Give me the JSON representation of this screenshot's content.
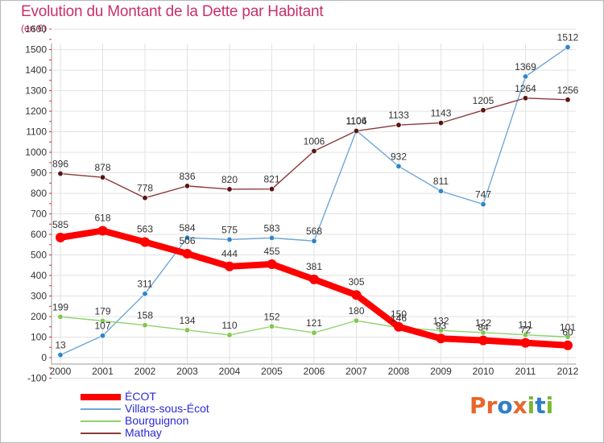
{
  "title": "Evolution du Montant de la Dette par Habitant",
  "subtitle": "(en €)",
  "logo": {
    "text": "Proxiti",
    "letters": [
      "P",
      "r",
      "o",
      "x",
      "i",
      "t",
      "i"
    ],
    "colors": [
      "#e8662a",
      "#e8662a",
      "#2d7fc9",
      "#e8662a",
      "#7bb832",
      "#2d7fc9",
      "#7bb832"
    ]
  },
  "chart_data": {
    "type": "line",
    "title": "Evolution du Montant de la Dette par Habitant",
    "subtitle": "(en €)",
    "x": [
      "2000",
      "2001",
      "2002",
      "2003",
      "2004",
      "2005",
      "2006",
      "2007",
      "2008",
      "2009",
      "2010",
      "2011",
      "2012"
    ],
    "ylim": [
      -100,
      1600
    ],
    "yticks": [
      "-100",
      "0",
      "100",
      "200",
      "300",
      "400",
      "500",
      "600",
      "700",
      "800",
      "900",
      "1000",
      "1100",
      "1200",
      "1300",
      "1400",
      "1500",
      "1600"
    ],
    "grid": true,
    "legend_position": "bottom-left",
    "series": [
      {
        "name": "ÉCOT",
        "color": "#ff0000",
        "values": [
          585,
          618,
          563,
          506,
          444,
          455,
          381,
          305,
          150,
          93,
          84,
          72,
          60
        ],
        "labels": [
          "585",
          "618",
          "563",
          "506",
          "444",
          "455",
          "381",
          "305",
          "150",
          "93",
          "84",
          "72",
          "60"
        ]
      },
      {
        "name": "Villars-sous-Écot",
        "color": "#6fa6d8",
        "values": [
          13,
          107,
          311,
          584,
          575,
          583,
          568,
          1106,
          932,
          811,
          747,
          1369,
          1512
        ],
        "labels": [
          "13",
          "107",
          "311",
          "584",
          "575",
          "583",
          "568",
          "1106",
          "932",
          "811",
          "747",
          "1369",
          "1512"
        ]
      },
      {
        "name": "Bourguignon",
        "color": "#8ed36a",
        "values": [
          199,
          179,
          158,
          134,
          110,
          152,
          121,
          180,
          146,
          132,
          122,
          111,
          101
        ],
        "labels": [
          "199",
          "179",
          "158",
          "134",
          "110",
          "152",
          "121",
          "180",
          "146",
          "132",
          "122",
          "111",
          "101"
        ]
      },
      {
        "name": "Mathay",
        "color": "#8b3a3a",
        "values": [
          896,
          878,
          778,
          836,
          820,
          821,
          1006,
          1104,
          1133,
          1143,
          1205,
          1264,
          1256
        ],
        "labels": [
          "896",
          "878",
          "778",
          "836",
          "820",
          "821",
          "1006",
          "1104",
          "1133",
          "1143",
          "1205",
          "1264",
          "1256"
        ]
      }
    ]
  }
}
